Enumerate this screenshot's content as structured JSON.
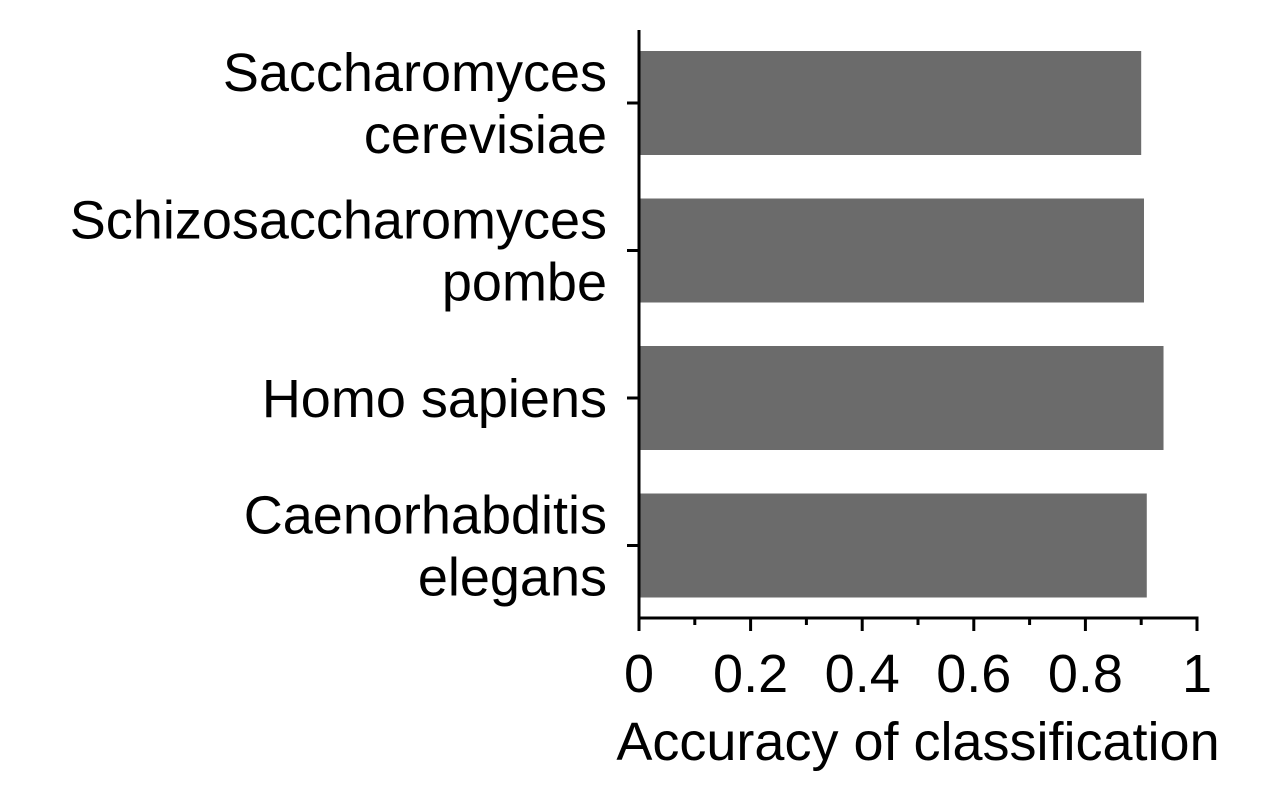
{
  "chart_data": {
    "type": "bar",
    "orientation": "horizontal",
    "categories": [
      [
        "Saccharomyces",
        "cerevisiae"
      ],
      [
        "Schizosaccharomyces",
        "pombe"
      ],
      [
        "Homo sapiens"
      ],
      [
        "Caenorhabditis",
        "elegans"
      ]
    ],
    "values": [
      0.9,
      0.905,
      0.94,
      0.91
    ],
    "xlabel": "Accuracy of classification",
    "ylabel": "",
    "title": "",
    "xlim": [
      0,
      1
    ],
    "xticks": [
      0,
      0.2,
      0.4,
      0.6,
      0.8,
      1
    ],
    "xtick_labels": [
      "0",
      "0.2",
      "0.4",
      "0.6",
      "0.8",
      "1"
    ],
    "minor_xticks": [
      0.1,
      0.3,
      0.5,
      0.7,
      0.9
    ],
    "bar_color": "#6b6b6b",
    "axis_color": "#000000",
    "grid": false,
    "legend": "none"
  }
}
